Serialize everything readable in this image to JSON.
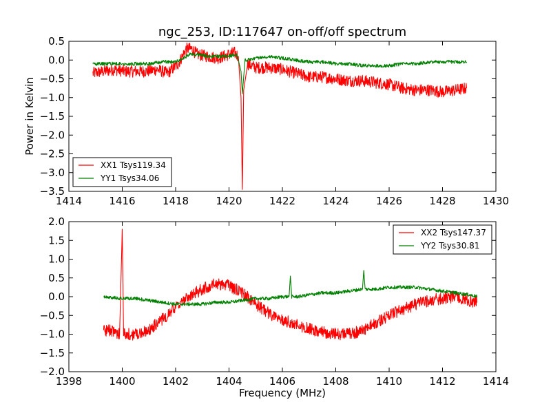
{
  "chart_data": [
    {
      "type": "line",
      "title": "ngc_253, ID:117647 on-off/off spectrum",
      "xlabel": "",
      "ylabel": "Power in Kelvin",
      "xlim": [
        1414,
        1430
      ],
      "ylim": [
        -3.5,
        0.5
      ],
      "xticks": [
        "1414",
        "1416",
        "1418",
        "1420",
        "1422",
        "1424",
        "1426",
        "1428",
        "1430"
      ],
      "yticks": [
        "0.5",
        "0.0",
        "−0.5",
        "−1.0",
        "−1.5",
        "−2.0",
        "−2.5",
        "−3.0",
        "−3.5"
      ],
      "legend_position": "lower-left",
      "series": [
        {
          "name": "XX1 Tsys119.34",
          "color": "#ff0000",
          "x": [
            1414.9,
            1415.3,
            1415.7,
            1416.1,
            1416.5,
            1416.9,
            1417.3,
            1417.7,
            1418.1,
            1418.4,
            1418.6,
            1418.8,
            1419.2,
            1419.6,
            1420.0,
            1420.2,
            1420.35,
            1420.45,
            1420.5,
            1420.55,
            1420.7,
            1421.0,
            1421.5,
            1422.0,
            1422.5,
            1423.0,
            1423.5,
            1424.0,
            1424.5,
            1425.0,
            1425.5,
            1426.0,
            1426.5,
            1427.0,
            1427.5,
            1428.0,
            1428.5,
            1428.9
          ],
          "y": [
            -0.35,
            -0.3,
            -0.25,
            -0.3,
            -0.3,
            -0.3,
            -0.25,
            -0.35,
            -0.1,
            0.3,
            0.3,
            0.15,
            0.1,
            0.05,
            0.15,
            0.2,
            0.1,
            -1.0,
            -3.45,
            -0.8,
            -0.1,
            -0.2,
            -0.2,
            -0.25,
            -0.35,
            -0.45,
            -0.45,
            -0.5,
            -0.55,
            -0.55,
            -0.6,
            -0.65,
            -0.75,
            -0.8,
            -0.8,
            -0.85,
            -0.8,
            -0.75
          ]
        },
        {
          "name": "YY1 Tsys34.06",
          "color": "#008000",
          "x": [
            1414.9,
            1415.5,
            1416.0,
            1416.5,
            1417.0,
            1417.5,
            1418.0,
            1418.3,
            1418.5,
            1418.8,
            1419.2,
            1419.6,
            1420.0,
            1420.3,
            1420.45,
            1420.5,
            1420.6,
            1421.0,
            1421.5,
            1422.0,
            1422.5,
            1423.0,
            1423.5,
            1424.0,
            1424.5,
            1425.0,
            1425.5,
            1426.0,
            1426.5,
            1427.0,
            1427.5,
            1428.0,
            1428.5,
            1428.9
          ],
          "y": [
            -0.1,
            -0.1,
            -0.1,
            -0.1,
            -0.1,
            -0.05,
            -0.05,
            0.05,
            0.15,
            0.15,
            0.1,
            0.1,
            0.1,
            0.15,
            -0.3,
            -0.9,
            0.0,
            0.05,
            0.1,
            0.05,
            0.0,
            -0.05,
            -0.05,
            -0.1,
            -0.1,
            -0.15,
            -0.15,
            -0.15,
            -0.1,
            -0.1,
            -0.05,
            -0.05,
            -0.05,
            -0.05
          ]
        }
      ]
    },
    {
      "type": "line",
      "title": "",
      "xlabel": "Frequency (MHz)",
      "ylabel": "",
      "xlim": [
        1398,
        1414
      ],
      "ylim": [
        -2.0,
        2.0
      ],
      "xticks": [
        "1398",
        "1400",
        "1402",
        "1404",
        "1406",
        "1408",
        "1410",
        "1412",
        "1414"
      ],
      "yticks": [
        "2.0",
        "1.5",
        "1.0",
        "0.5",
        "0.0",
        "−0.5",
        "−1.0",
        "−1.5",
        "−2.0"
      ],
      "legend_position": "upper-right",
      "series": [
        {
          "name": "XX2 Tsys147.37",
          "color": "#ff0000",
          "x": [
            1399.3,
            1399.6,
            1399.9,
            1400.0,
            1400.05,
            1400.1,
            1400.5,
            1401.0,
            1401.5,
            1402.0,
            1402.5,
            1403.0,
            1403.5,
            1404.0,
            1404.5,
            1405.0,
            1405.5,
            1406.0,
            1406.5,
            1407.0,
            1407.5,
            1408.0,
            1408.5,
            1409.0,
            1409.5,
            1410.0,
            1410.5,
            1411.0,
            1411.5,
            1412.0,
            1412.5,
            1413.0,
            1413.3
          ],
          "y": [
            -0.9,
            -0.9,
            -1.0,
            1.8,
            -1.0,
            -1.0,
            -1.0,
            -0.9,
            -0.6,
            -0.3,
            0.0,
            0.2,
            0.35,
            0.3,
            0.1,
            -0.2,
            -0.45,
            -0.6,
            -0.75,
            -0.85,
            -0.95,
            -1.0,
            -1.0,
            -0.9,
            -0.7,
            -0.5,
            -0.35,
            -0.2,
            -0.1,
            -0.05,
            0.0,
            -0.1,
            -0.15
          ]
        },
        {
          "name": "YY2 Tsys30.81",
          "color": "#008000",
          "x": [
            1399.3,
            1400.0,
            1400.5,
            1401.0,
            1401.5,
            1402.0,
            1402.5,
            1403.0,
            1403.5,
            1404.0,
            1404.5,
            1405.0,
            1405.5,
            1406.0,
            1406.25,
            1406.3,
            1406.35,
            1406.6,
            1407.0,
            1407.5,
            1408.0,
            1408.5,
            1409.0,
            1409.05,
            1409.1,
            1409.5,
            1410.0,
            1410.5,
            1411.0,
            1411.5,
            1412.0,
            1412.5,
            1413.0,
            1413.3
          ],
          "y": [
            0.0,
            -0.05,
            -0.05,
            -0.1,
            -0.15,
            -0.2,
            -0.2,
            -0.2,
            -0.15,
            -0.15,
            -0.1,
            -0.05,
            -0.05,
            0.0,
            0.0,
            0.55,
            0.0,
            0.0,
            0.05,
            0.1,
            0.1,
            0.15,
            0.2,
            0.7,
            0.2,
            0.2,
            0.25,
            0.25,
            0.25,
            0.2,
            0.15,
            0.1,
            0.05,
            0.0
          ]
        }
      ]
    }
  ]
}
